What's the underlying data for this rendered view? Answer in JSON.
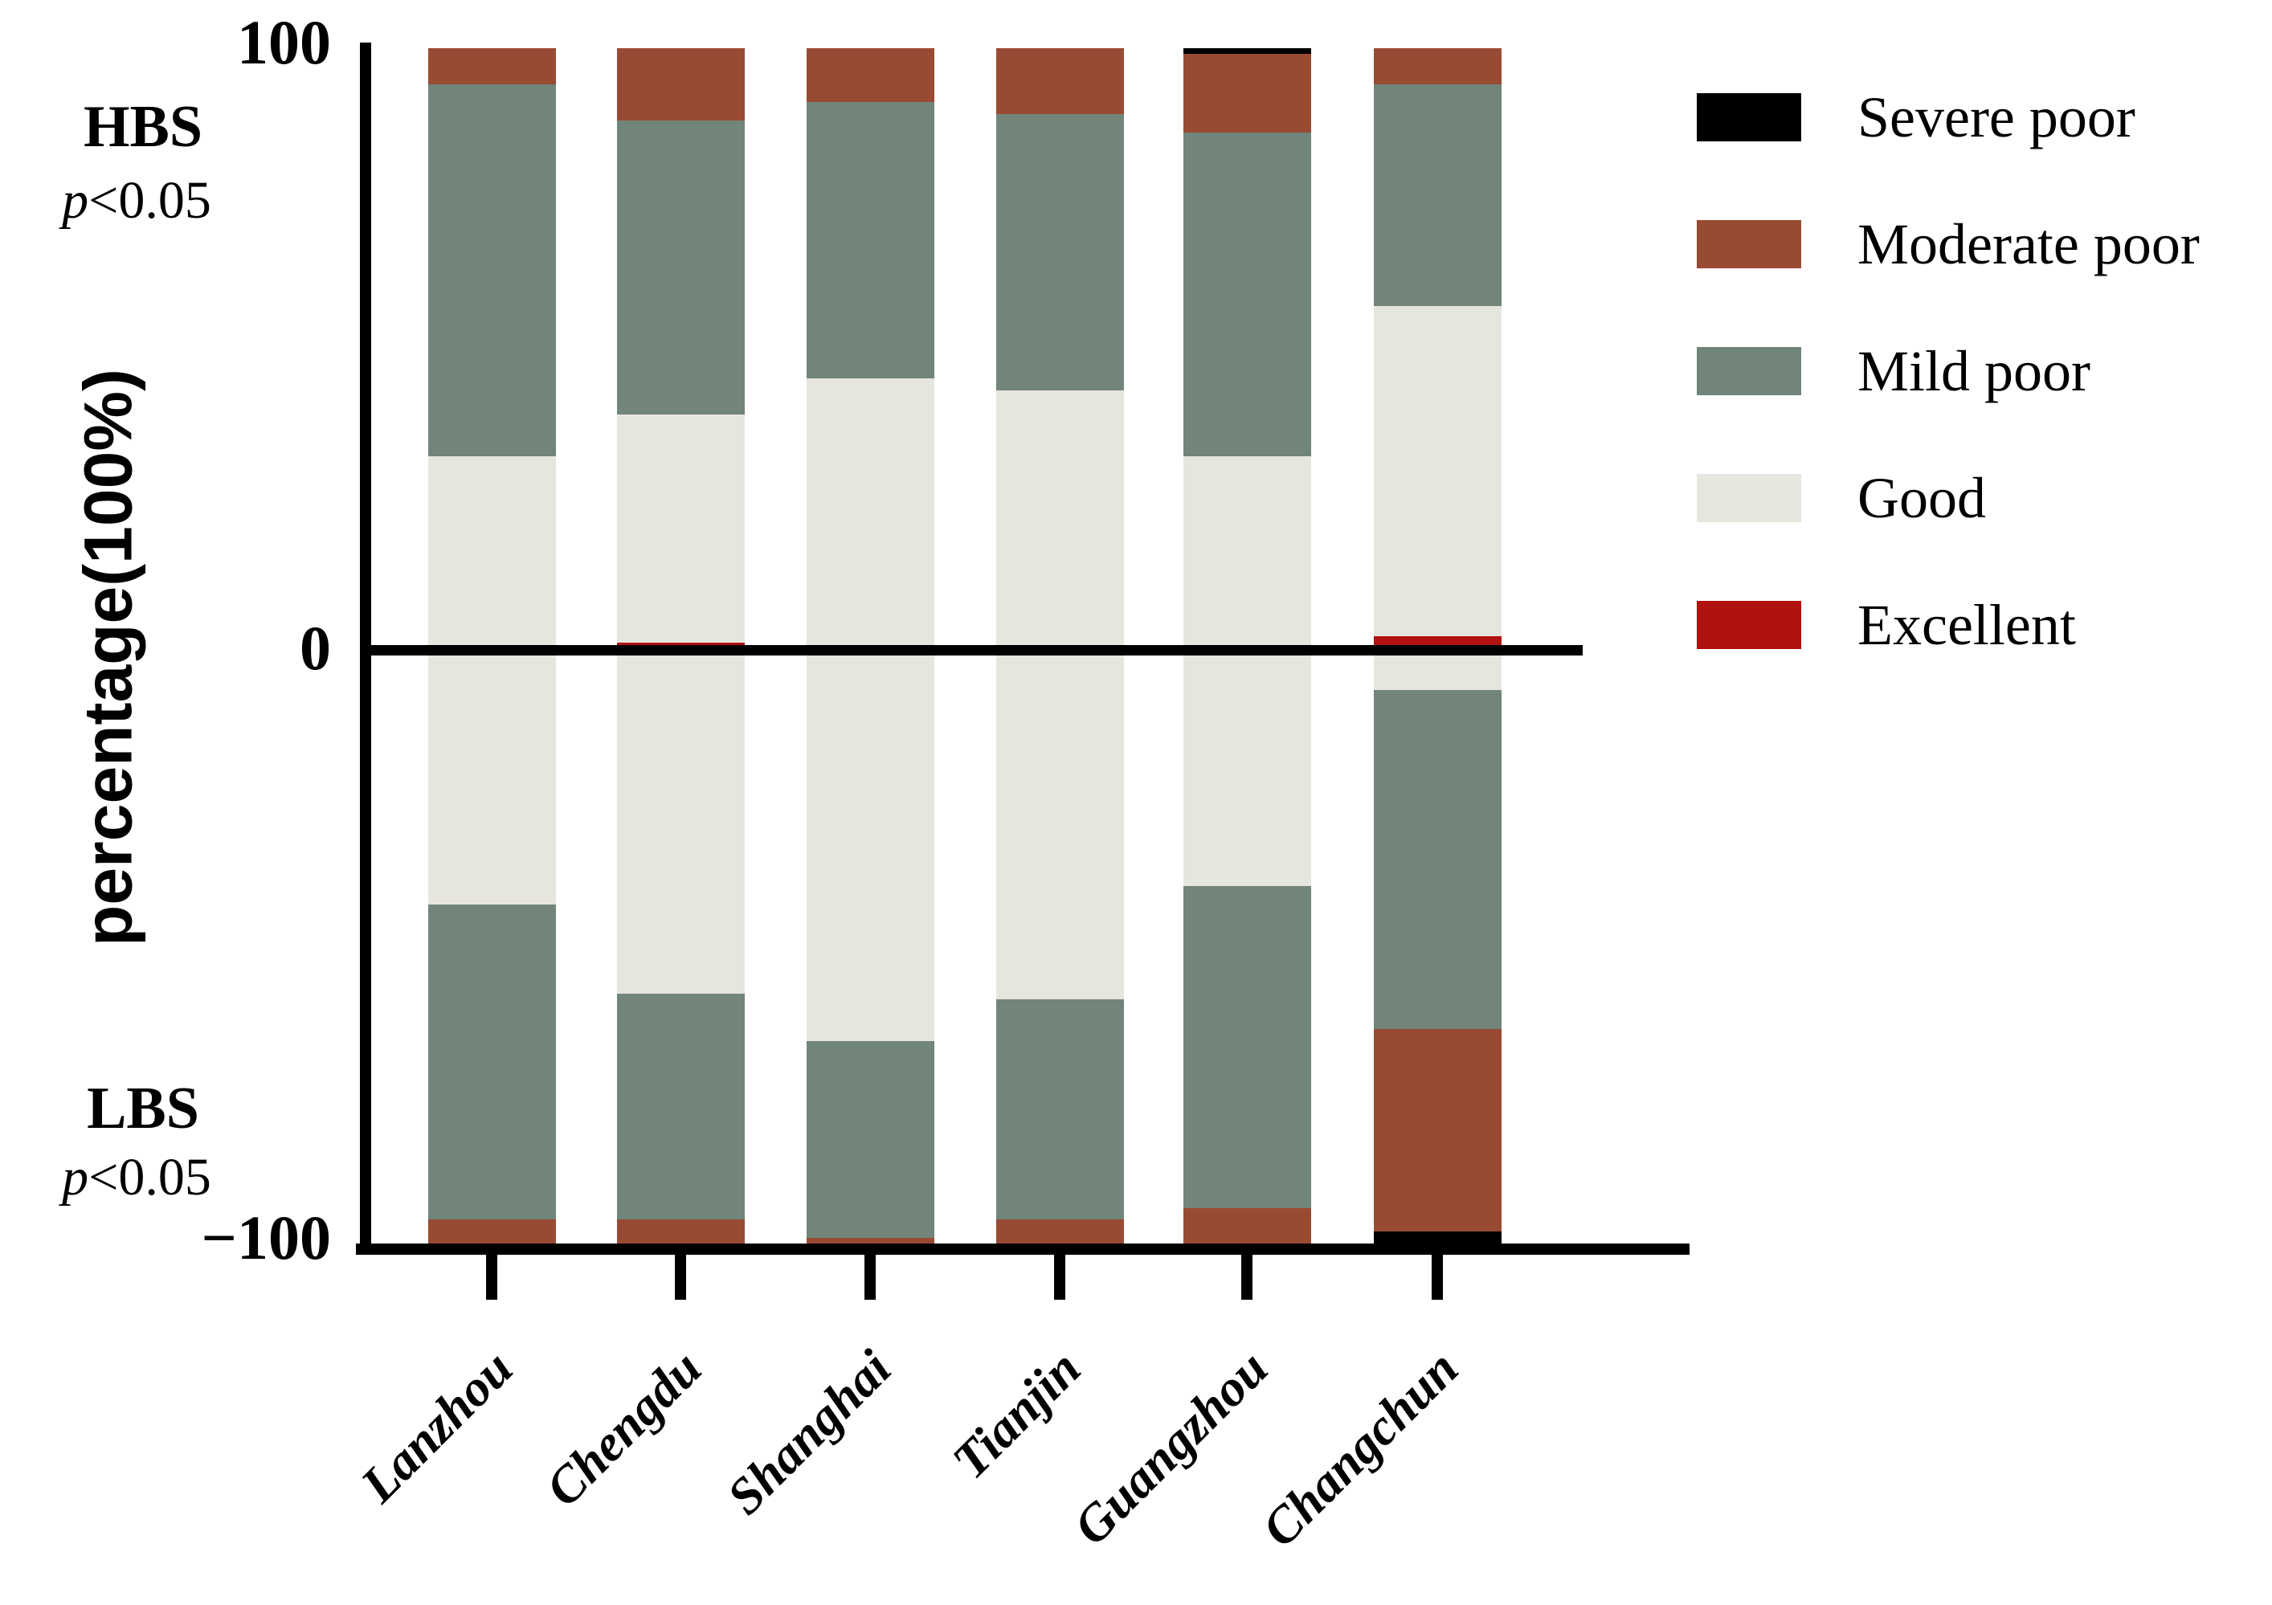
{
  "figure": {
    "background": "#ffffff",
    "axis_color": "#000000"
  },
  "y_axis": {
    "title": "percentage(100%)",
    "tick_top": "100",
    "tick_zero": "0",
    "tick_bottom": "−100"
  },
  "annotations": {
    "top_group": "HBS",
    "top_p_symbol": "p",
    "top_p_value": "<0.05",
    "bottom_group": "LBS",
    "bottom_p_symbol": "p",
    "bottom_p_value": "<0.05"
  },
  "legend": [
    {
      "label": "Severe poor",
      "color": "#000000"
    },
    {
      "label": "Moderate poor",
      "color": "#994a33"
    },
    {
      "label": "Mild poor",
      "color": "#71857a"
    },
    {
      "label": "Good",
      "color": "#e7e6de"
    },
    {
      "label": "Excellent",
      "color": "#b01210"
    }
  ],
  "chart_data": {
    "type": "bar",
    "subtype": "diverging-stacked-percentage",
    "title": "",
    "xlabel": "",
    "ylabel": "percentage(100%)",
    "ylim": [
      -100,
      100
    ],
    "ytick_labels": [
      "100",
      "0",
      "−100"
    ],
    "grid": false,
    "legend_position": "right",
    "categories": [
      "Lanzhou",
      "Chengdu",
      "Shanghai",
      "Tianjin",
      "Guangzhou",
      "Changchun"
    ],
    "groups": [
      {
        "name": "HBS",
        "p_text": "p<0.05",
        "direction": "up",
        "stack_order_top_to_bottom": [
          "Severe poor",
          "Moderate poor",
          "Mild poor",
          "Good",
          "Excellent"
        ],
        "series": [
          {
            "name": "Severe poor",
            "values": [
              0,
              0,
              0,
              0,
              1,
              0
            ]
          },
          {
            "name": "Moderate poor",
            "values": [
              6,
              12,
              9,
              11,
              13,
              6
            ]
          },
          {
            "name": "Mild poor",
            "values": [
              62,
              49,
              46,
              46,
              54,
              37
            ]
          },
          {
            "name": "Good",
            "values": [
              32,
              38,
              45,
              43,
              32,
              55
            ]
          },
          {
            "name": "Excellent",
            "values": [
              0,
              1,
              0,
              0,
              0,
              2
            ]
          }
        ]
      },
      {
        "name": "LBS",
        "p_text": "p<0.05",
        "direction": "down",
        "stack_order_top_to_bottom": [
          "Excellent",
          "Good",
          "Mild poor",
          "Moderate poor",
          "Severe poor"
        ],
        "series": [
          {
            "name": "Excellent",
            "values": [
              0,
              0,
              0,
              0,
              0,
              0
            ]
          },
          {
            "name": "Good",
            "values": [
              43,
              58,
              66,
              59,
              40,
              7
            ]
          },
          {
            "name": "Mild poor",
            "values": [
              53,
              38,
              33,
              37,
              54,
              57
            ]
          },
          {
            "name": "Moderate poor",
            "values": [
              4,
              4,
              1,
              4,
              6,
              34
            ]
          },
          {
            "name": "Severe poor",
            "values": [
              0,
              0,
              0,
              0,
              0,
              2
            ]
          }
        ]
      }
    ]
  }
}
